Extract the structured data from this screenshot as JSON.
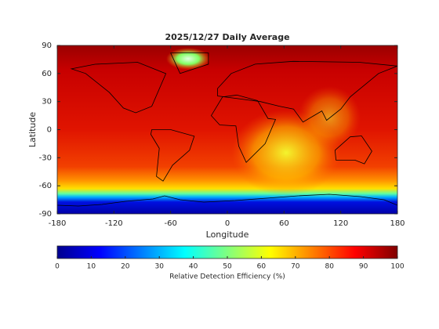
{
  "chart_data": {
    "type": "map",
    "title": "2025/12/27 Daily Average",
    "xlabel": "Longitude",
    "ylabel": "Latitude",
    "xlim": [
      -180,
      180
    ],
    "xticks": [
      -180,
      -120,
      -60,
      0,
      60,
      120,
      180
    ],
    "ylim": [
      -90,
      90
    ],
    "yticks": [
      -90,
      -60,
      -30,
      0,
      30,
      60,
      90
    ],
    "colormap": "jet",
    "colorbar": {
      "label": "Relative Detection Efficiency (%)",
      "clim": [
        0,
        100
      ],
      "ticks": [
        0,
        10,
        20,
        30,
        40,
        50,
        60,
        70,
        80,
        90,
        100
      ]
    }
  }
}
